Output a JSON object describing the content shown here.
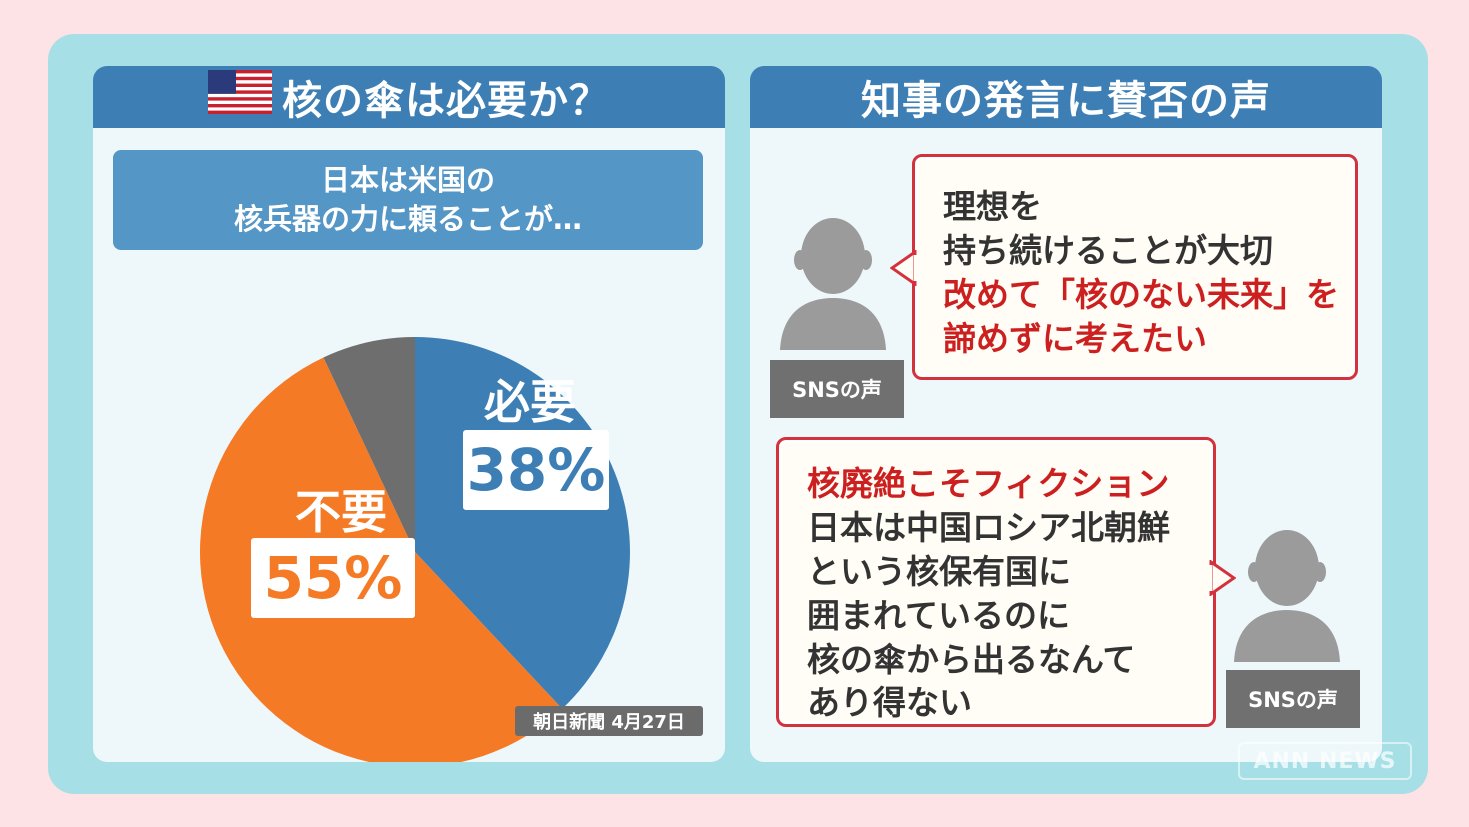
{
  "left_panel": {
    "title": "核の傘は必要か？",
    "question_line1": "日本は米国の",
    "question_line2": "核兵器の力に頼ることが…",
    "source": "朝日新聞 4月27日"
  },
  "chart_data": {
    "type": "pie",
    "start": "top",
    "direction": "clockwise",
    "slices": [
      {
        "label": "必要",
        "value": 38,
        "value_label": "38%",
        "color": "#3d7fb5"
      },
      {
        "label": "不要",
        "value": 55,
        "value_label": "55%",
        "color": "#f57a25"
      },
      {
        "label": "",
        "value": 7,
        "value_label": "",
        "color": "#6e6e6e"
      }
    ]
  },
  "right_panel": {
    "title": "知事の発言に賛否の声",
    "comment1": {
      "lines": [
        "理想を",
        "持ち続けることが大切"
      ],
      "red_lines": [
        "改めて「核のない未来」を",
        "諦めずに考えたい"
      ],
      "speaker": "SNSの声"
    },
    "comment2": {
      "red_lines": [
        "核廃絶こそフィクション"
      ],
      "lines": [
        "日本は中国ロシア北朝鮮",
        "という核保有国に",
        "囲まれているのに",
        "核の傘から出るなんて",
        "あり得ない"
      ],
      "speaker": "SNSの声"
    }
  },
  "logo": "ANN NEWS",
  "colors": {
    "background": "#fde3e6",
    "frame": "#a7dfe6",
    "header": "#3d7fb5",
    "accent_red": "#d3323c"
  }
}
